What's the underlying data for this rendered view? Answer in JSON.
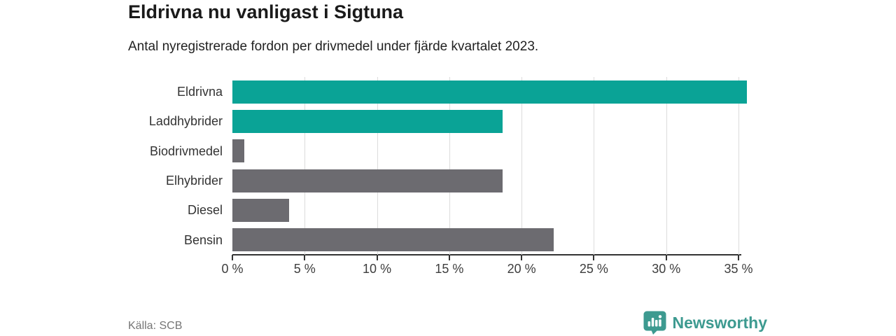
{
  "header": {
    "title": "Eldrivna nu vanligast i Sigtuna",
    "subtitle": "Antal nyregistrerade fordon per drivmedel under fjärde kvartalet 2023."
  },
  "chart_data": {
    "type": "bar",
    "orientation": "horizontal",
    "title": "Eldrivna nu vanligast i Sigtuna",
    "subtitle": "Antal nyregistrerade fordon per drivmedel under fjärde kvartalet 2023.",
    "categories": [
      "Eldrivna",
      "Laddhybrider",
      "Biodrivmedel",
      "Elhybrider",
      "Diesel",
      "Bensin"
    ],
    "values": [
      35.6,
      18.7,
      0.8,
      18.7,
      3.9,
      22.2
    ],
    "unit": "%",
    "xlabel": "",
    "ylabel": "",
    "xlim": [
      0,
      35
    ],
    "x_ticks": [
      0,
      5,
      10,
      15,
      20,
      25,
      30,
      35
    ],
    "x_tick_labels": [
      "0 %",
      "5 %",
      "10 %",
      "15 %",
      "20 %",
      "25 %",
      "30 %",
      "35 %"
    ],
    "grid": true,
    "legend": false,
    "bar_colors": [
      "#0aa396",
      "#0aa396",
      "#6c6b70",
      "#6c6b70",
      "#6c6b70",
      "#6c6b70"
    ],
    "highlight_color": "#0aa396",
    "default_color": "#6c6b70"
  },
  "footer": {
    "source": "Källa: SCB",
    "brand": "Newsworthy"
  },
  "colors": {
    "accent_teal": "#0aa396",
    "neutral_gray": "#6c6b70",
    "brand_teal": "#3d9a90",
    "gridline": "#dcdcdc",
    "axis": "#333333"
  }
}
